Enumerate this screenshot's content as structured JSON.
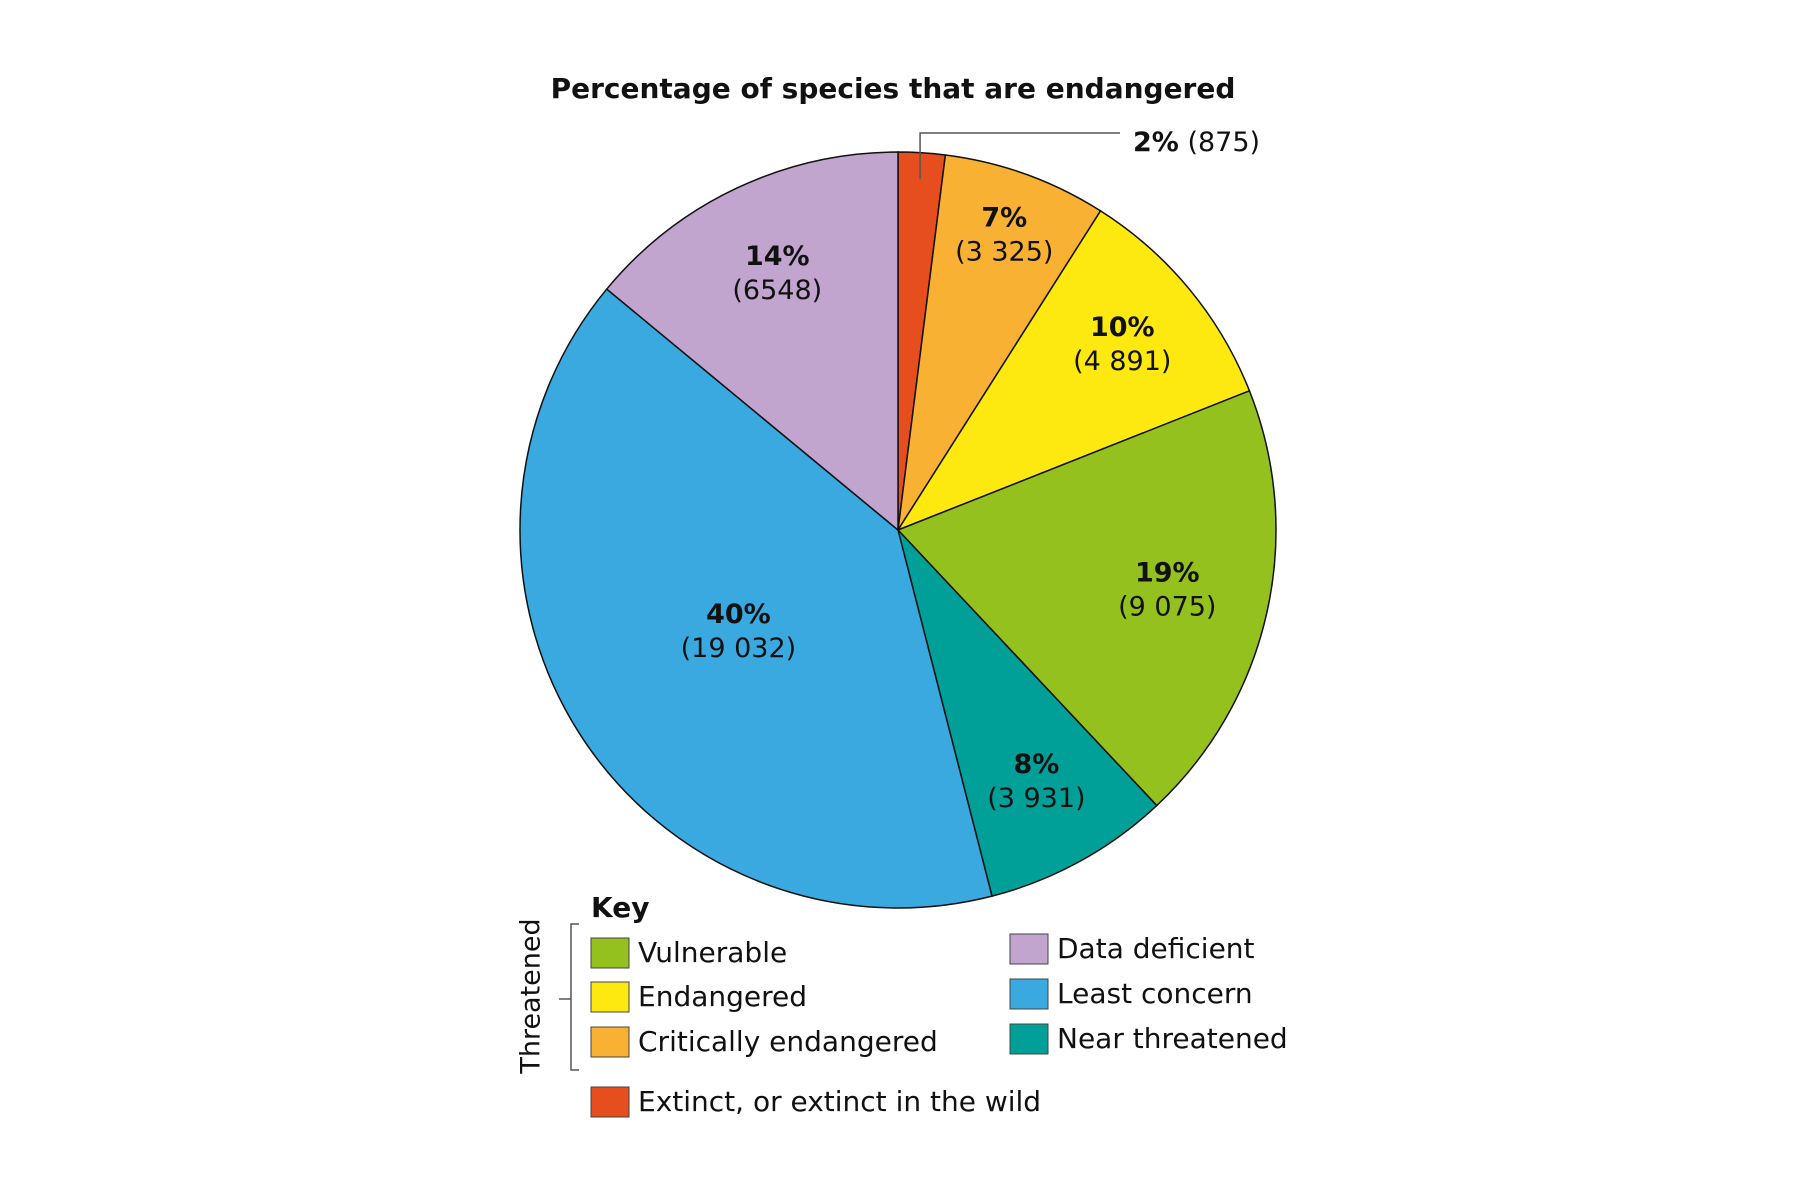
{
  "chart_data": {
    "type": "pie",
    "title": "Percentage of species that are endangered",
    "categories": [
      "Extinct, or extinct in the wild",
      "Critically endangered",
      "Endangered",
      "Vulnerable",
      "Near threatened",
      "Least concern",
      "Data deficient"
    ],
    "values": [
      2,
      7,
      10,
      19,
      8,
      40,
      14
    ],
    "value_labels": [
      "2%",
      "7%",
      "10%",
      "19%",
      "8%",
      "40%",
      "14%"
    ],
    "counts": [
      875,
      3325,
      4891,
      9075,
      3931,
      19032,
      6548
    ],
    "count_labels": [
      "(875)",
      "(3 325)",
      "(4 891)",
      "(9 075)",
      "(3 931)",
      "(19 032)",
      "(6548)"
    ],
    "colors": [
      "#e64e1e",
      "#f8b133",
      "#fde910",
      "#95c11f",
      "#009f98",
      "#39a9e0",
      "#c1a5cf"
    ],
    "legend_title": "Key",
    "legend_group": "Threatened"
  }
}
